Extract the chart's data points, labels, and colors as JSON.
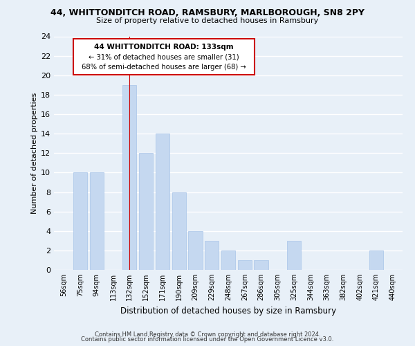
{
  "title_line1": "44, WHITTONDITCH ROAD, RAMSBURY, MARLBOROUGH, SN8 2PY",
  "title_line2": "Size of property relative to detached houses in Ramsbury",
  "xlabel": "Distribution of detached houses by size in Ramsbury",
  "ylabel": "Number of detached properties",
  "bar_labels": [
    "56sqm",
    "75sqm",
    "94sqm",
    "113sqm",
    "132sqm",
    "152sqm",
    "171sqm",
    "190sqm",
    "209sqm",
    "229sqm",
    "248sqm",
    "267sqm",
    "286sqm",
    "305sqm",
    "325sqm",
    "344sqm",
    "363sqm",
    "382sqm",
    "402sqm",
    "421sqm",
    "440sqm"
  ],
  "bar_heights": [
    0,
    10,
    10,
    0,
    19,
    12,
    14,
    8,
    4,
    3,
    2,
    1,
    1,
    0,
    3,
    0,
    0,
    0,
    0,
    2,
    0
  ],
  "bar_color": "#c5d8f0",
  "bar_edge_color": "#a8c4e8",
  "highlight_bar_index": 4,
  "highlight_line_color": "#cc0000",
  "ylim": [
    0,
    24
  ],
  "yticks": [
    0,
    2,
    4,
    6,
    8,
    10,
    12,
    14,
    16,
    18,
    20,
    22,
    24
  ],
  "grid_color": "#ffffff",
  "background_color": "#e8f0f8",
  "annotation_text_line1": "44 WHITTONDITCH ROAD: 133sqm",
  "annotation_text_line2": "← 31% of detached houses are smaller (31)",
  "annotation_text_line3": "68% of semi-detached houses are larger (68) →",
  "annotation_box_color": "#ffffff",
  "annotation_edge_color": "#cc0000",
  "footer_line1": "Contains HM Land Registry data © Crown copyright and database right 2024.",
  "footer_line2": "Contains public sector information licensed under the Open Government Licence v3.0."
}
